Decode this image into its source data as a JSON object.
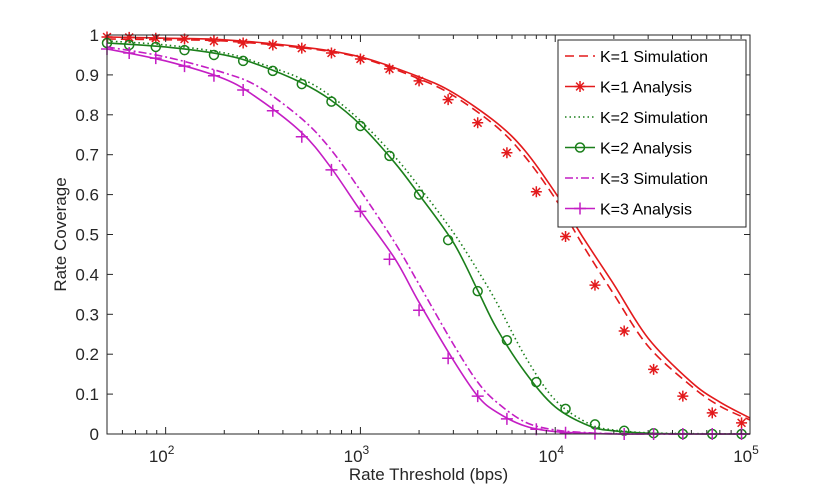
{
  "chart_data": {
    "type": "line",
    "title": "",
    "xlabel": "Rate Threshold (bps)",
    "ylabel": "Rate Coverage",
    "xscale": "log",
    "xlim": [
      50,
      100000
    ],
    "ylim": [
      0,
      1
    ],
    "x_ticks": [
      100,
      1000,
      10000,
      100000
    ],
    "x_tick_labels": [
      {
        "base": "10",
        "exp": "2"
      },
      {
        "base": "10",
        "exp": "3"
      },
      {
        "base": "10",
        "exp": "4"
      },
      {
        "base": "10",
        "exp": "5"
      }
    ],
    "y_ticks": [
      0,
      0.1,
      0.2,
      0.3,
      0.4,
      0.5,
      0.6,
      0.7,
      0.8,
      0.9,
      1
    ],
    "y_tick_labels": [
      "0",
      "0.1",
      "0.2",
      "0.3",
      "0.4",
      "0.5",
      "0.6",
      "0.7",
      "0.8",
      "0.9",
      "1"
    ],
    "grid": false,
    "legend_position": "top-right",
    "series": [
      {
        "name": "K=1 Simulation",
        "color": "#e31a1c",
        "dash": "dashed",
        "marker": "none",
        "x": [
          50,
          100,
          200,
          500,
          1000,
          2000,
          3000,
          5000,
          7000,
          10000,
          14000,
          20000,
          30000,
          50000,
          70000,
          100000
        ],
        "y": [
          0.99,
          0.988,
          0.985,
          0.968,
          0.943,
          0.89,
          0.848,
          0.77,
          0.695,
          0.59,
          0.47,
          0.35,
          0.22,
          0.12,
          0.07,
          0.035
        ]
      },
      {
        "name": "K=1 Analysis",
        "color": "#e31a1c",
        "dash": "solid",
        "marker": "asterisk",
        "x": [
          50,
          100,
          200,
          500,
          1000,
          2000,
          3000,
          5000,
          7000,
          10000,
          14000,
          20000,
          30000,
          50000,
          70000,
          100000
        ],
        "y": [
          0.995,
          0.992,
          0.988,
          0.97,
          0.945,
          0.895,
          0.855,
          0.78,
          0.71,
          0.605,
          0.49,
          0.375,
          0.24,
          0.13,
          0.08,
          0.04
        ],
        "marker_x": [
          50,
          65,
          89,
          125,
          177,
          250,
          355,
          500,
          710,
          1000,
          1410,
          2000,
          2820,
          4000,
          5650,
          8000,
          11300,
          16000,
          22600,
          32000,
          45200,
          64000,
          90500
        ],
        "marker_y": [
          0.995,
          0.994,
          0.992,
          0.99,
          0.985,
          0.98,
          0.975,
          0.967,
          0.955,
          0.94,
          0.915,
          0.885,
          0.838,
          0.78,
          0.705,
          0.607,
          0.495,
          0.373,
          0.258,
          0.162,
          0.095,
          0.053,
          0.028
        ]
      },
      {
        "name": "K=2 Simulation",
        "color": "#1b7f1b",
        "dash": "dotted",
        "marker": "none",
        "x": [
          50,
          100,
          200,
          300,
          500,
          700,
          1000,
          1500,
          2000,
          3000,
          4000,
          5000,
          7000,
          10000,
          15000,
          20000,
          30000,
          50000,
          100000
        ],
        "y": [
          0.985,
          0.975,
          0.955,
          0.93,
          0.89,
          0.848,
          0.785,
          0.695,
          0.62,
          0.505,
          0.41,
          0.33,
          0.195,
          0.085,
          0.025,
          0.01,
          0.003,
          0.001,
          0.0
        ]
      },
      {
        "name": "K=2 Analysis",
        "color": "#1b7f1b",
        "dash": "solid",
        "marker": "circle",
        "x": [
          50,
          100,
          200,
          300,
          500,
          700,
          1000,
          1500,
          2000,
          3000,
          4000,
          5000,
          7000,
          10000,
          15000,
          20000,
          30000,
          50000,
          100000
        ],
        "y": [
          0.98,
          0.97,
          0.95,
          0.925,
          0.88,
          0.838,
          0.775,
          0.68,
          0.6,
          0.48,
          0.36,
          0.265,
          0.155,
          0.068,
          0.02,
          0.008,
          0.002,
          0.0,
          0.0
        ],
        "marker_x": [
          50,
          65,
          89,
          125,
          177,
          250,
          355,
          500,
          710,
          1000,
          1410,
          2000,
          2820,
          4000,
          5650,
          8000,
          11300,
          16000,
          22600,
          32000,
          45200,
          64000,
          90500
        ],
        "marker_y": [
          0.98,
          0.975,
          0.97,
          0.962,
          0.95,
          0.935,
          0.91,
          0.877,
          0.833,
          0.772,
          0.697,
          0.6,
          0.486,
          0.358,
          0.235,
          0.13,
          0.063,
          0.024,
          0.008,
          0.002,
          0.0,
          0.0,
          0.0
        ]
      },
      {
        "name": "K=3 Simulation",
        "color": "#c41ec4",
        "dash": "dashdot",
        "marker": "none",
        "x": [
          50,
          100,
          200,
          300,
          500,
          700,
          1000,
          1500,
          2000,
          3000,
          4000,
          5000,
          7000,
          10000,
          15000,
          20000,
          30000,
          50000,
          100000
        ],
        "y": [
          0.97,
          0.945,
          0.905,
          0.87,
          0.79,
          0.715,
          0.61,
          0.48,
          0.375,
          0.225,
          0.13,
          0.08,
          0.03,
          0.01,
          0.003,
          0.001,
          0.0,
          0.0,
          0.0
        ]
      },
      {
        "name": "K=3 Analysis",
        "color": "#c41ec4",
        "dash": "solid",
        "marker": "plus",
        "x": [
          50,
          100,
          200,
          300,
          500,
          700,
          1000,
          1500,
          2000,
          3000,
          4000,
          5000,
          7000,
          10000,
          15000,
          20000,
          30000,
          50000,
          100000
        ],
        "y": [
          0.965,
          0.935,
          0.89,
          0.84,
          0.755,
          0.67,
          0.56,
          0.44,
          0.33,
          0.185,
          0.095,
          0.055,
          0.02,
          0.006,
          0.002,
          0.0,
          0.0,
          0.0,
          0.0
        ],
        "marker_x": [
          50,
          65,
          89,
          125,
          177,
          250,
          355,
          500,
          710,
          1000,
          1410,
          2000,
          2820,
          4000,
          5650,
          8000,
          11300,
          16000,
          22600,
          32000,
          45200,
          64000,
          90500
        ],
        "marker_y": [
          0.965,
          0.955,
          0.942,
          0.922,
          0.898,
          0.862,
          0.81,
          0.745,
          0.662,
          0.558,
          0.438,
          0.31,
          0.19,
          0.095,
          0.038,
          0.012,
          0.003,
          0.001,
          0.0,
          0.0,
          0.0,
          0.0,
          0.0
        ]
      }
    ]
  }
}
